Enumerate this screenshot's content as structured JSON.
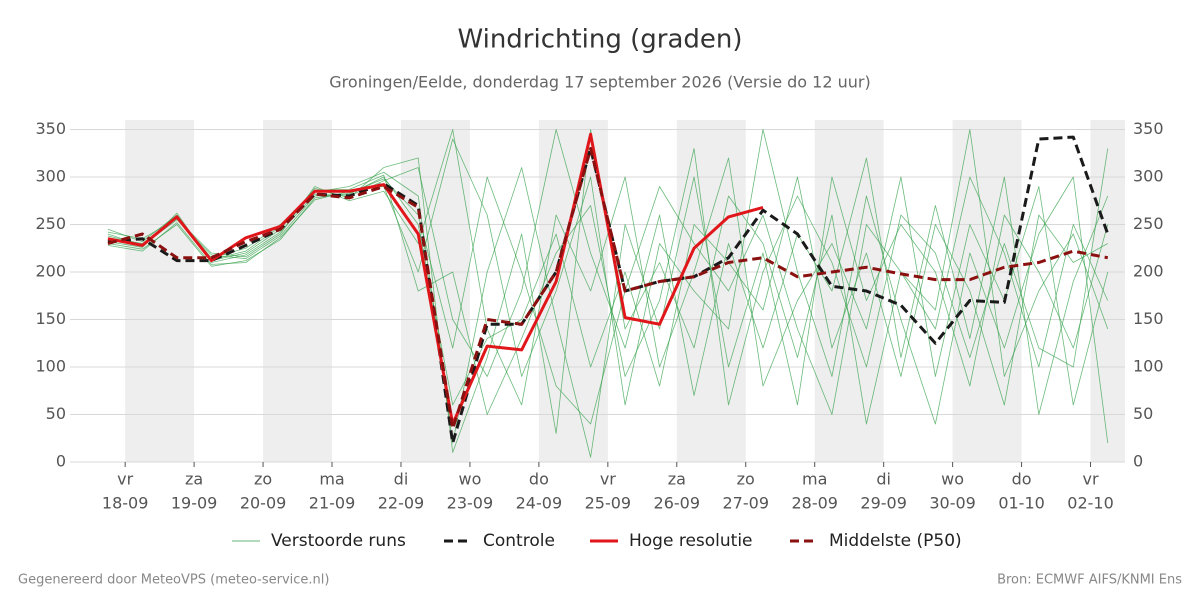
{
  "chart_data": {
    "type": "line",
    "title": "Windrichting (graden)",
    "subtitle": "Groningen/Eelde, donderdag 17 september 2026 (Versie do 12 uur)",
    "footer_left": "Gegenereerd door MeteoVPS (meteo-service.nl)",
    "footer_right": "Bron: ECMWF AIFS/KNMI Ens",
    "x": [
      -0.25,
      0.25,
      0.75,
      1.25,
      1.75,
      2.25,
      2.75,
      3.25,
      3.75,
      4.25,
      4.75,
      5.25,
      5.75,
      6.25,
      6.75,
      7.25,
      7.75,
      8.25,
      8.75,
      9.25,
      9.75,
      10.25,
      10.75,
      11.25,
      11.75,
      12.25,
      12.75,
      13.25,
      13.75,
      14.25
    ],
    "xlim": [
      -0.8,
      14.5
    ],
    "xticks": [
      {
        "value": 0,
        "label": [
          "vr",
          "18-09"
        ]
      },
      {
        "value": 1,
        "label": [
          "za",
          "19-09"
        ]
      },
      {
        "value": 2,
        "label": [
          "zo",
          "20-09"
        ]
      },
      {
        "value": 3,
        "label": [
          "ma",
          "21-09"
        ]
      },
      {
        "value": 4,
        "label": [
          "di",
          "22-09"
        ]
      },
      {
        "value": 5,
        "label": [
          "wo",
          "23-09"
        ]
      },
      {
        "value": 6,
        "label": [
          "do",
          "24-09"
        ]
      },
      {
        "value": 7,
        "label": [
          "vr",
          "25-09"
        ]
      },
      {
        "value": 8,
        "label": [
          "za",
          "26-09"
        ]
      },
      {
        "value": 9,
        "label": [
          "zo",
          "27-09"
        ]
      },
      {
        "value": 10,
        "label": [
          "ma",
          "28-09"
        ]
      },
      {
        "value": 11,
        "label": [
          "di",
          "29-09"
        ]
      },
      {
        "value": 12,
        "label": [
          "wo",
          "30-09"
        ]
      },
      {
        "value": 13,
        "label": [
          "do",
          "01-10"
        ]
      },
      {
        "value": 14,
        "label": [
          "vr",
          "02-10"
        ]
      }
    ],
    "ylim": [
      0,
      360
    ],
    "yticks": [
      0,
      50,
      100,
      150,
      200,
      250,
      300,
      350
    ],
    "grid": true,
    "series": [
      {
        "name": "Verstoorde runs",
        "color": "#2e9e44",
        "style": "thin",
        "values": [
          [
            240,
            228,
            255,
            218,
            214,
            238,
            280,
            282,
            300,
            250,
            60,
            130,
            150,
            240,
            100,
            200,
            80,
            250,
            210,
            160,
            300,
            120,
            220,
            90,
            250,
            180,
            60,
            260,
            210,
            230
          ],
          [
            245,
            232,
            260,
            212,
            220,
            245,
            288,
            278,
            310,
            320,
            10,
            110,
            240,
            30,
            350,
            140,
            210,
            120,
            280,
            230,
            110,
            260,
            40,
            200,
            140,
            300,
            220,
            100,
            250,
            170
          ],
          [
            228,
            222,
            252,
            208,
            210,
            236,
            276,
            285,
            290,
            200,
            340,
            260,
            90,
            180,
            300,
            60,
            230,
            180,
            140,
            350,
            200,
            90,
            280,
            150,
            40,
            220,
            120,
            240,
            300,
            20
          ],
          [
            236,
            230,
            258,
            215,
            225,
            250,
            284,
            290,
            305,
            280,
            20,
            200,
            310,
            150,
            5,
            250,
            140,
            300,
            100,
            220,
            60,
            300,
            170,
            250,
            200,
            80,
            260,
            200,
            120,
            250
          ],
          [
            232,
            226,
            262,
            210,
            218,
            242,
            282,
            280,
            296,
            310,
            150,
            90,
            180,
            350,
            220,
            120,
            260,
            70,
            230,
            120,
            240,
            180,
            320,
            110,
            270,
            130,
            300,
            50,
            190,
            280
          ],
          [
            242,
            235,
            256,
            220,
            216,
            240,
            290,
            275,
            285,
            230,
            350,
            140,
            60,
            260,
            180,
            300,
            100,
            200,
            320,
            80,
            170,
            230,
            140,
            300,
            90,
            250,
            170,
            290,
            60,
            200
          ],
          [
            230,
            224,
            250,
            206,
            212,
            234,
            278,
            283,
            298,
            260,
            120,
            300,
            200,
            80,
            40,
            180,
            290,
            230,
            180,
            260,
            140,
            50,
            250,
            200,
            160,
            350,
            90,
            180,
            240,
            140
          ],
          [
            238,
            229,
            259,
            213,
            222,
            248,
            286,
            287,
            302,
            180,
            200,
            50,
            130,
            220,
            270,
            90,
            170,
            330,
            60,
            200,
            280,
            210,
            100,
            260,
            220,
            110,
            230,
            120,
            100,
            330
          ]
        ]
      },
      {
        "name": "Controle",
        "color": "#1a1a1a",
        "style": "dash",
        "values": [
          232,
          235,
          212,
          212,
          228,
          245,
          282,
          280,
          293,
          270,
          20,
          145,
          145,
          200,
          330,
          180,
          190,
          195,
          215,
          265,
          240,
          185,
          180,
          165,
          125,
          170,
          168,
          340,
          342,
          240
        ]
      },
      {
        "name": "Hoge resolutie",
        "color": "#e0161b",
        "style": "thick",
        "values": [
          235,
          228,
          258,
          212,
          236,
          248,
          285,
          285,
          292,
          240,
          40,
          122,
          118,
          190,
          345,
          152,
          145,
          225,
          258,
          268,
          null,
          null,
          null,
          null,
          null,
          null,
          null,
          null,
          null,
          null
        ]
      },
      {
        "name": "Middelste (P50)",
        "color": "#8b1010",
        "style": "dash",
        "values": [
          230,
          240,
          215,
          215,
          232,
          245,
          282,
          278,
          290,
          268,
          35,
          150,
          145,
          200,
          330,
          180,
          190,
          195,
          210,
          215,
          195,
          200,
          205,
          198,
          192,
          192,
          205,
          210,
          222,
          215
        ]
      }
    ]
  }
}
